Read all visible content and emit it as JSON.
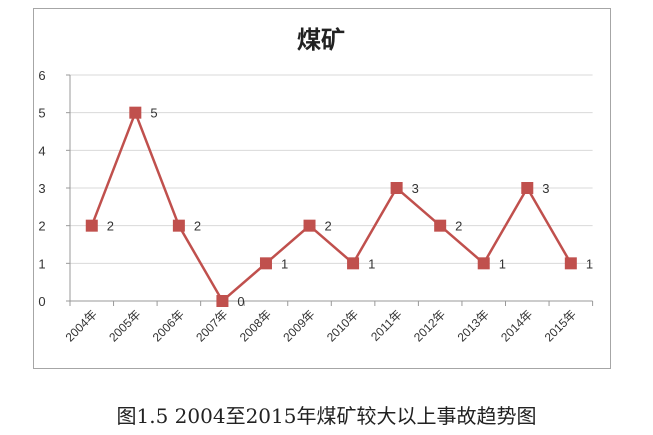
{
  "chart_data": {
    "type": "line",
    "title": "煤矿",
    "categories": [
      "2004年",
      "2005年",
      "2006年",
      "2007年",
      "2008年",
      "2009年",
      "2010年",
      "2011年",
      "2012年",
      "2013年",
      "2014年",
      "2015年"
    ],
    "series": [
      {
        "values": [
          2,
          5,
          2,
          0,
          1,
          2,
          1,
          3,
          2,
          1,
          3,
          1
        ],
        "color": "#c0504d"
      }
    ],
    "data_labels": true,
    "xlabel": "",
    "ylabel": "",
    "ylim": [
      0,
      6
    ],
    "yticks": [
      0,
      1,
      2,
      3,
      4,
      5,
      6
    ],
    "grid": true,
    "marker": "square"
  },
  "caption": "图1.5 2004至2015年煤矿较大以上事故趋势图"
}
